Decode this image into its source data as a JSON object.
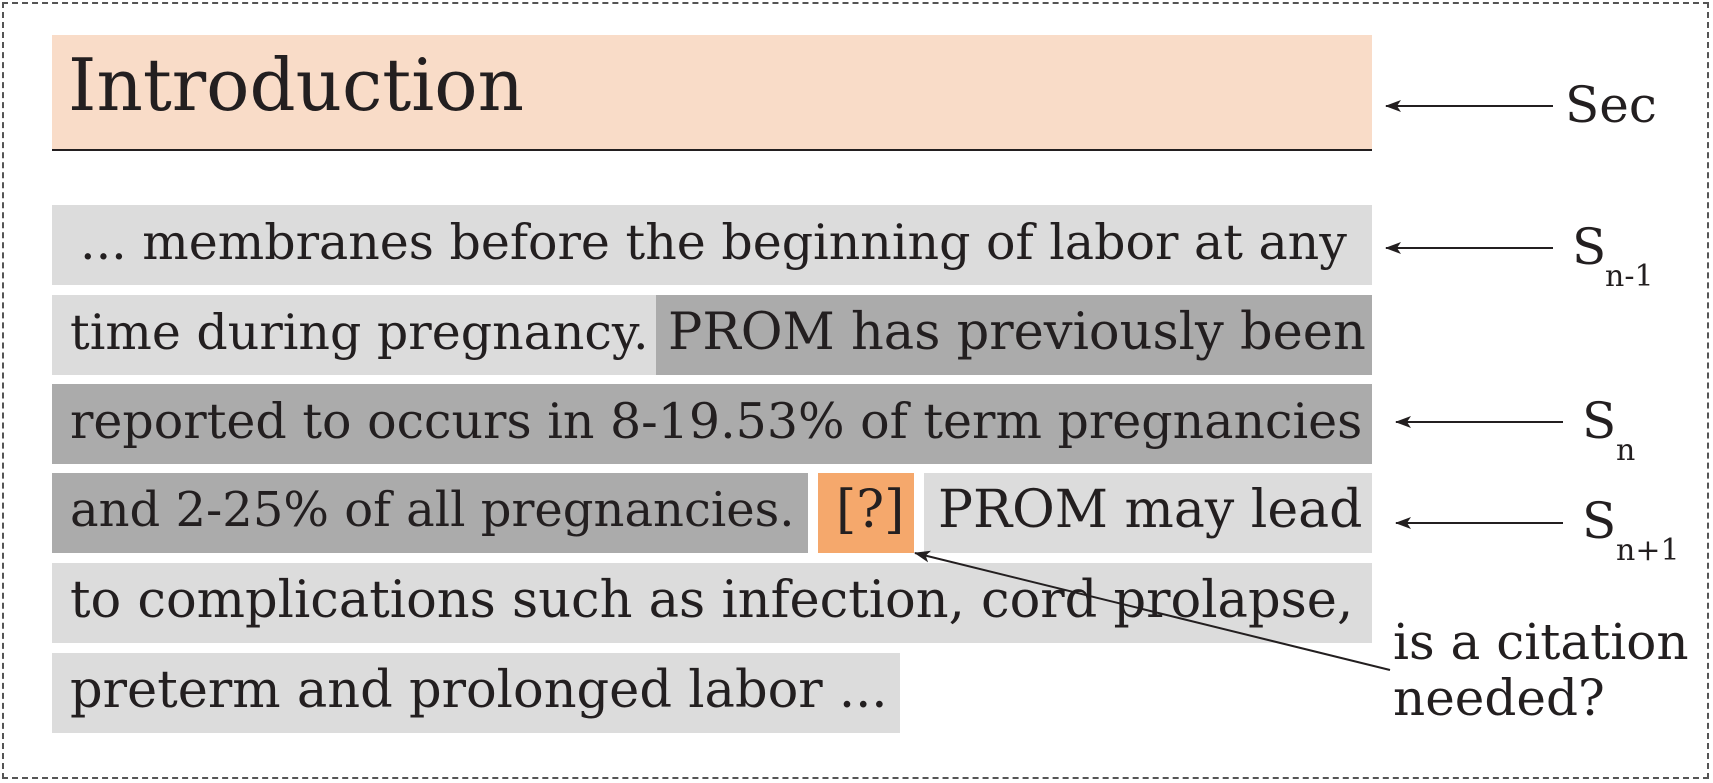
{
  "section": {
    "title": "Introduction"
  },
  "passage": {
    "line1": "... membranes before the beginning of labor at any",
    "line2_a": "time during pregnancy.",
    "line2_b": "PROM has previously been",
    "line3": "reported to occurs in 8-19.53% of term pregnancies",
    "line4_a": "and 2-25% of all pregnancies.",
    "citation_marker": "[?]",
    "line4_b": "PROM may lead",
    "line5": "to complications such as infection, cord prolapse,",
    "line6": "preterm and prolonged labor ..."
  },
  "labels": {
    "sec": "Sec",
    "s_prev": {
      "base": "S",
      "sub": "n-1"
    },
    "s_cur": {
      "base": "S",
      "sub": "n"
    },
    "s_next": {
      "base": "S",
      "sub": "n+1"
    },
    "question_line1": "is a citation",
    "question_line2": "needed?"
  },
  "colors": {
    "section_bg": "#f9dcc8",
    "context_sentence": "#dcdcdc",
    "target_sentence": "#ababab",
    "citation_marker": "#f5a86c"
  }
}
